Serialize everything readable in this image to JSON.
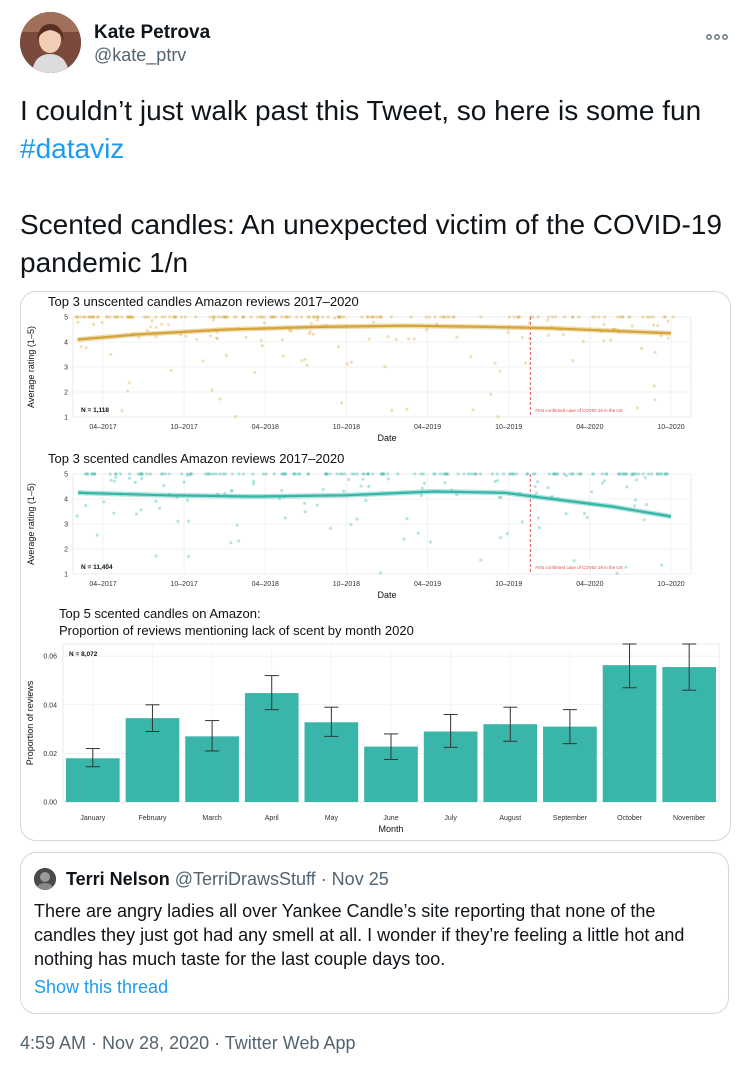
{
  "author": {
    "name": "Kate Petrova",
    "handle": "@kate_ptrv"
  },
  "tweet": {
    "text_pre": "I couldn’t just walk past this Tweet, so here is some fun ",
    "hashtag": "#dataviz",
    "text_post": "Scented candles: An unexpected victim of the COVID-19 pandemic 1/n"
  },
  "more_icon": "more-options-icon",
  "chart_data": [
    {
      "type": "scatter",
      "title": "Top 3 unscented candles Amazon reviews 2017–2020",
      "xlabel": "Date",
      "ylabel": "Average rating (1–5)",
      "x_ticks": [
        "04–2017",
        "10–2017",
        "04–2018",
        "10–2018",
        "04–2019",
        "10–2019",
        "04–2020",
        "10–2020"
      ],
      "y_ticks": [
        "1",
        "2",
        "3",
        "4",
        "5"
      ],
      "ylim": [
        1,
        5
      ],
      "annotation_n": "N = 1,118",
      "event_label": "First confirmed case of COVID-19 in the US",
      "color": "#d4a437",
      "trend": [
        [
          0,
          4.1
        ],
        [
          0.1,
          4.3
        ],
        [
          0.25,
          4.5
        ],
        [
          0.4,
          4.6
        ],
        [
          0.55,
          4.65
        ],
        [
          0.7,
          4.6
        ],
        [
          0.8,
          4.55
        ],
        [
          0.9,
          4.45
        ],
        [
          1,
          4.35
        ]
      ],
      "event_x": 0.74
    },
    {
      "type": "scatter",
      "title": "Top 3 scented candles Amazon reviews 2017–2020",
      "xlabel": "Date",
      "ylabel": "Average rating (1–5)",
      "x_ticks": [
        "04–2017",
        "10–2017",
        "04–2018",
        "10–2018",
        "04–2019",
        "10–2019",
        "04–2020",
        "10–2020"
      ],
      "y_ticks": [
        "1",
        "2",
        "3",
        "4",
        "5"
      ],
      "ylim": [
        1,
        5
      ],
      "annotation_n": "N = 11,404",
      "event_label": "First confirmed case of COVID-19 in the US",
      "color": "#33b5a8",
      "trend": [
        [
          0,
          4.25
        ],
        [
          0.15,
          4.15
        ],
        [
          0.3,
          4.1
        ],
        [
          0.45,
          4.15
        ],
        [
          0.6,
          4.3
        ],
        [
          0.72,
          4.25
        ],
        [
          0.8,
          4.0
        ],
        [
          0.9,
          3.7
        ],
        [
          1,
          3.3
        ]
      ],
      "event_x": 0.74
    },
    {
      "type": "bar",
      "title": "Top 5 scented candles on Amazon:",
      "subtitle": "Proportion of reviews mentioning lack of scent by month 2020",
      "xlabel": "Month",
      "ylabel": "Proportion of reviews",
      "annotation_n": "N = 8,072",
      "categories": [
        "January",
        "February",
        "March",
        "April",
        "May",
        "June",
        "July",
        "August",
        "September",
        "October",
        "November"
      ],
      "values": [
        0.018,
        0.0345,
        0.027,
        0.0448,
        0.0328,
        0.0228,
        0.029,
        0.032,
        0.031,
        0.0563,
        0.0555
      ],
      "error_low": [
        0.0145,
        0.029,
        0.021,
        0.038,
        0.027,
        0.0175,
        0.0225,
        0.025,
        0.024,
        0.047,
        0.046
      ],
      "error_high": [
        0.022,
        0.04,
        0.0335,
        0.052,
        0.039,
        0.028,
        0.036,
        0.039,
        0.038,
        0.065,
        0.065
      ],
      "y_ticks": [
        "0.00",
        "0.02",
        "0.04",
        "0.06"
      ],
      "ylim": [
        0,
        0.065
      ],
      "color": "#3ab5a9"
    }
  ],
  "quote": {
    "name": "Terri Nelson",
    "meta": "@TerriDrawsStuff · Nov 25",
    "text": "There are angry ladies all over Yankee Candle’s site reporting that none of the candles they just got had any smell at all.  I wonder if they’re feeling a little hot and nothing has much taste for the last couple days too.",
    "link": "Show this thread"
  },
  "footer": "4:59 AM · Nov 28, 2020 · Twitter Web App"
}
